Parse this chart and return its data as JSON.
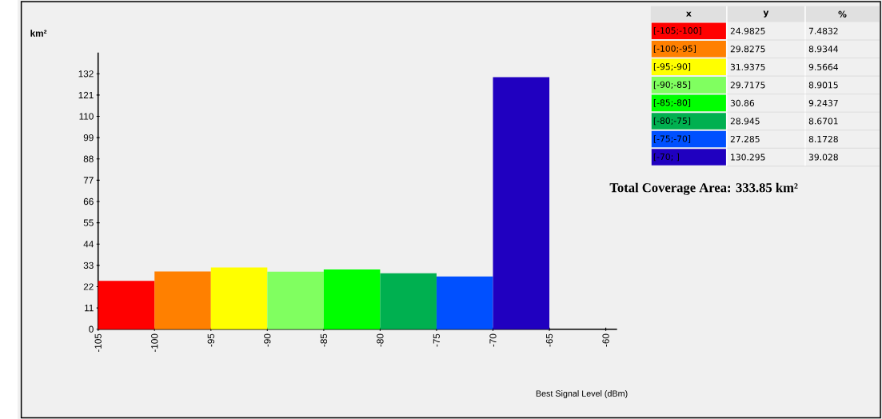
{
  "chart_data": {
    "type": "histogram",
    "bins": [
      -105,
      -100,
      -95,
      -90,
      -85,
      -80,
      -75,
      -70,
      -65
    ],
    "values": [
      24.9825,
      29.8275,
      31.9375,
      29.7175,
      30.86,
      28.945,
      27.285,
      130.295
    ],
    "colors": [
      "#ff0000",
      "#ff8000",
      "#ffff00",
      "#80ff60",
      "#00ff00",
      "#00b050",
      "#0050ff",
      "#2000c0"
    ],
    "categories": [
      "[-105;-100]",
      "[-100;-95]",
      "[-95;-90]",
      "[-90;-85]",
      "[-85;-80]",
      "[-80;-75]",
      "[-75;-70]",
      "[-70;     ]"
    ],
    "xlabel": "Best Signal Level (dBm)",
    "ylabel": "km²",
    "xlim": [
      -105,
      -59
    ],
    "ylim": [
      0,
      143
    ],
    "xticks": [
      -105,
      -100,
      -95,
      -90,
      -85,
      -80,
      -75,
      -70,
      -65,
      -60
    ],
    "yticks": [
      0,
      11,
      22,
      33,
      44,
      55,
      66,
      77,
      88,
      99,
      110,
      121,
      132
    ],
    "annotations": [
      "x",
      "y",
      "%",
      "24.9825",
      "29.8275",
      "31.9375",
      "29.7175",
      "30.86",
      "28.945",
      "27.285",
      "130.295",
      "7.4832",
      "8.9344",
      "9.5664",
      "8.9015",
      "9.2437",
      "8.6701",
      "8.1728",
      "39.028",
      "Total Coverage Area: 333.85 km²"
    ]
  }
}
